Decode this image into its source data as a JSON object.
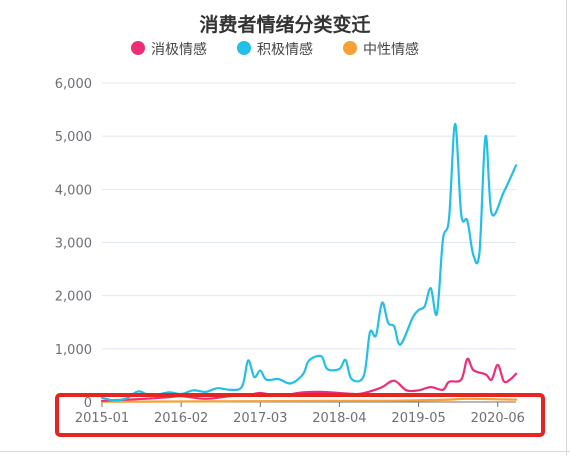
{
  "chart_data": {
    "type": "line",
    "title": "消费者情绪分类变迁",
    "xlabel": "",
    "ylabel": "",
    "ylim": [
      0,
      6000
    ],
    "yticks": [
      "0",
      "1,000",
      "2,000",
      "3,000",
      "4,000",
      "5,000",
      "6,000"
    ],
    "ytick_values": [
      0,
      1000,
      2000,
      3000,
      4000,
      5000,
      6000
    ],
    "xlim": [
      "2015-01",
      "2020-09"
    ],
    "xticks": [
      "2015-01",
      "2016-02",
      "2017-03",
      "2018-04",
      "2019-05",
      "2020-06"
    ],
    "grid": "horizontal",
    "legend_position": "top",
    "series": [
      {
        "name": "消极情感",
        "color": "#ee2d78",
        "points": [
          [
            "2015-01",
            20
          ],
          [
            "2015-04",
            40
          ],
          [
            "2015-08",
            60
          ],
          [
            "2015-12",
            90
          ],
          [
            "2016-02",
            110
          ],
          [
            "2016-06",
            60
          ],
          [
            "2016-10",
            110
          ],
          [
            "2017-01",
            130
          ],
          [
            "2017-03",
            170
          ],
          [
            "2017-06",
            120
          ],
          [
            "2017-10",
            180
          ],
          [
            "2018-01",
            190
          ],
          [
            "2018-04",
            170
          ],
          [
            "2018-07",
            150
          ],
          [
            "2018-09",
            200
          ],
          [
            "2018-11",
            280
          ],
          [
            "2019-01",
            400
          ],
          [
            "2019-03",
            220
          ],
          [
            "2019-05",
            220
          ],
          [
            "2019-07",
            280
          ],
          [
            "2019-09",
            230
          ],
          [
            "2019-10",
            380
          ],
          [
            "2019-12",
            420
          ],
          [
            "2020-01",
            810
          ],
          [
            "2020-02",
            600
          ],
          [
            "2020-04",
            520
          ],
          [
            "2020-05",
            420
          ],
          [
            "2020-06",
            700
          ],
          [
            "2020-07",
            390
          ],
          [
            "2020-08",
            420
          ],
          [
            "2020-09",
            530
          ]
        ]
      },
      {
        "name": "积极情感",
        "color": "#22bfe8",
        "points": [
          [
            "2015-01",
            80
          ],
          [
            "2015-03",
            30
          ],
          [
            "2015-05",
            70
          ],
          [
            "2015-07",
            200
          ],
          [
            "2015-09",
            120
          ],
          [
            "2015-12",
            180
          ],
          [
            "2016-02",
            150
          ],
          [
            "2016-04",
            220
          ],
          [
            "2016-06",
            190
          ],
          [
            "2016-08",
            260
          ],
          [
            "2016-10",
            230
          ],
          [
            "2016-12",
            290
          ],
          [
            "2017-01",
            780
          ],
          [
            "2017-02",
            470
          ],
          [
            "2017-03",
            590
          ],
          [
            "2017-04",
            420
          ],
          [
            "2017-06",
            430
          ],
          [
            "2017-08",
            350
          ],
          [
            "2017-10",
            520
          ],
          [
            "2017-11",
            780
          ],
          [
            "2018-01",
            860
          ],
          [
            "2018-02",
            620
          ],
          [
            "2018-04",
            620
          ],
          [
            "2018-05",
            790
          ],
          [
            "2018-06",
            430
          ],
          [
            "2018-08",
            490
          ],
          [
            "2018-09",
            1310
          ],
          [
            "2018-10",
            1250
          ],
          [
            "2018-11",
            1870
          ],
          [
            "2018-12",
            1490
          ],
          [
            "2019-01",
            1420
          ],
          [
            "2019-02",
            1080
          ],
          [
            "2019-04",
            1580
          ],
          [
            "2019-05",
            1730
          ],
          [
            "2019-06",
            1800
          ],
          [
            "2019-07",
            2140
          ],
          [
            "2019-08",
            1660
          ],
          [
            "2019-09",
            3050
          ],
          [
            "2019-10",
            3450
          ],
          [
            "2019-11",
            5230
          ],
          [
            "2019-12",
            3530
          ],
          [
            "2020-01",
            3410
          ],
          [
            "2020-02",
            2760
          ],
          [
            "2020-03",
            2820
          ],
          [
            "2020-04",
            5000
          ],
          [
            "2020-05",
            3550
          ],
          [
            "2020-07",
            3950
          ],
          [
            "2020-09",
            4450
          ]
        ]
      },
      {
        "name": "中性情感",
        "color": "#f7a035",
        "points": [
          [
            "2015-01",
            5
          ],
          [
            "2016-01",
            10
          ],
          [
            "2017-01",
            15
          ],
          [
            "2018-01",
            20
          ],
          [
            "2019-01",
            25
          ],
          [
            "2019-09",
            40
          ],
          [
            "2020-01",
            60
          ],
          [
            "2020-06",
            50
          ],
          [
            "2020-09",
            45
          ]
        ]
      }
    ]
  }
}
